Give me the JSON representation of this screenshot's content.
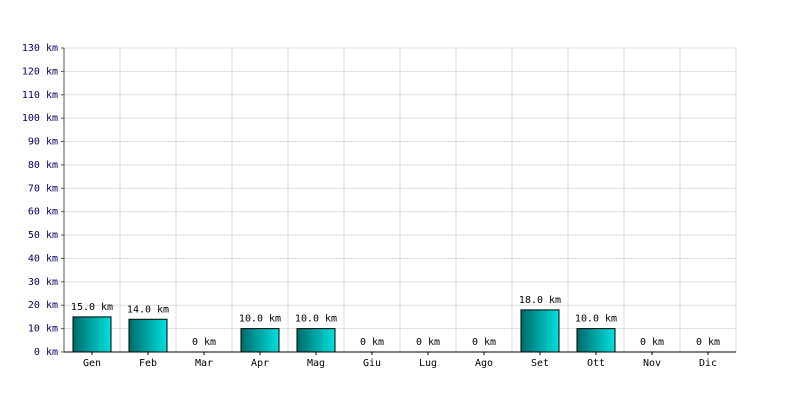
{
  "chart_data": {
    "type": "bar",
    "categories": [
      "Gen",
      "Feb",
      "Mar",
      "Apr",
      "Mag",
      "Giu",
      "Lug",
      "Ago",
      "Set",
      "Ott",
      "Nov",
      "Dic"
    ],
    "values": [
      15,
      14,
      0,
      10,
      10,
      0,
      0,
      0,
      18,
      10,
      0,
      0
    ],
    "value_labels": [
      "15.0 km",
      "14.0 km",
      "0 km",
      "10.0 km",
      "10.0 km",
      "0 km",
      "0 km",
      "0 km",
      "18.0 km",
      "10.0 km",
      "0 km",
      "0 km"
    ],
    "color": "#00e0e0",
    "ylim": [
      0,
      130
    ],
    "yticks": [
      {
        "value": 0,
        "label": "0 km"
      },
      {
        "value": 10,
        "label": "10 km"
      },
      {
        "value": 20,
        "label": "20 km"
      },
      {
        "value": 30,
        "label": "30 km"
      },
      {
        "value": 40,
        "label": "40 km"
      },
      {
        "value": 50,
        "label": "50 km"
      },
      {
        "value": 60,
        "label": "60 km"
      },
      {
        "value": 70,
        "label": "70 km"
      },
      {
        "value": 80,
        "label": "80 km"
      },
      {
        "value": 90,
        "label": "90 km"
      },
      {
        "value": 100,
        "label": "100 km"
      },
      {
        "value": 110,
        "label": "110 km"
      },
      {
        "value": 120,
        "label": "120 km"
      },
      {
        "value": 130,
        "label": "130 km"
      }
    ],
    "grid": true
  }
}
